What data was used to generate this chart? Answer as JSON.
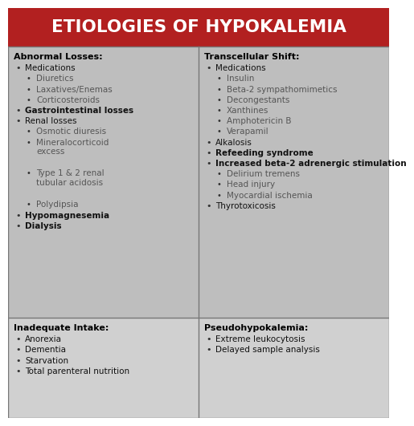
{
  "title": "ETIOLOGIES OF HYPOKALEMIA",
  "title_bg": "#B22020",
  "title_color": "#FFFFFF",
  "top_bg": "#BEBEBE",
  "bot_bg": "#D0D0D0",
  "border_color": "#777777",
  "sections": {
    "top_left": {
      "header": "Abnormal Losses:",
      "lines": [
        {
          "text": "Medications",
          "level": 1,
          "bold": false,
          "gray": false
        },
        {
          "text": "Diuretics",
          "level": 2,
          "bold": false,
          "gray": true
        },
        {
          "text": "Laxatives/Enemas",
          "level": 2,
          "bold": false,
          "gray": true
        },
        {
          "text": "Corticosteroids",
          "level": 2,
          "bold": false,
          "gray": true
        },
        {
          "text": "Gastrointestinal losses",
          "level": 1,
          "bold": true,
          "gray": false
        },
        {
          "text": "Renal losses",
          "level": 1,
          "bold": false,
          "gray": false
        },
        {
          "text": "Osmotic diuresis",
          "level": 2,
          "bold": false,
          "gray": true
        },
        {
          "text": "Mineralocorticoid\nexcess",
          "level": 2,
          "bold": false,
          "gray": true
        },
        {
          "text": "Type 1 & 2 renal\ntubular acidosis",
          "level": 2,
          "bold": false,
          "gray": true
        },
        {
          "text": "Polydipsia",
          "level": 2,
          "bold": false,
          "gray": true
        },
        {
          "text": "Hypomagnesemia",
          "level": 1,
          "bold": true,
          "gray": false
        },
        {
          "text": "Dialysis",
          "level": 1,
          "bold": true,
          "gray": false
        }
      ]
    },
    "top_right": {
      "header": "Transcellular Shift:",
      "lines": [
        {
          "text": "Medications",
          "level": 1,
          "bold": false,
          "gray": false
        },
        {
          "text": "Insulin",
          "level": 2,
          "bold": false,
          "gray": true
        },
        {
          "text": "Beta-2 sympathomimetics",
          "level": 2,
          "bold": false,
          "gray": true
        },
        {
          "text": "Decongestants",
          "level": 2,
          "bold": false,
          "gray": true
        },
        {
          "text": "Xanthines",
          "level": 2,
          "bold": false,
          "gray": true
        },
        {
          "text": "Amphotericin B",
          "level": 2,
          "bold": false,
          "gray": true
        },
        {
          "text": "Verapamil",
          "level": 2,
          "bold": false,
          "gray": true
        },
        {
          "text": "Alkalosis",
          "level": 1,
          "bold": false,
          "gray": false
        },
        {
          "text": "Refeeding syndrome",
          "level": 1,
          "bold": true,
          "gray": false
        },
        {
          "text": "Increased beta-2 adrenergic stimulation",
          "level": 1,
          "bold": true,
          "gray": false
        },
        {
          "text": "Delirium tremens",
          "level": 2,
          "bold": false,
          "gray": true
        },
        {
          "text": "Head injury",
          "level": 2,
          "bold": false,
          "gray": true
        },
        {
          "text": "Myocardial ischemia",
          "level": 2,
          "bold": false,
          "gray": true
        },
        {
          "text": "Thyrotoxicosis",
          "level": 1,
          "bold": false,
          "gray": false
        }
      ]
    },
    "bottom_left": {
      "header": "Inadequate Intake:",
      "lines": [
        {
          "text": "Anorexia",
          "level": 1,
          "bold": false,
          "gray": false
        },
        {
          "text": "Dementia",
          "level": 1,
          "bold": false,
          "gray": false
        },
        {
          "text": "Starvation",
          "level": 1,
          "bold": false,
          "gray": false
        },
        {
          "text": "Total parenteral nutrition",
          "level": 1,
          "bold": false,
          "gray": false
        }
      ]
    },
    "bottom_right": {
      "header": "Pseudohypokalemia:",
      "lines": [
        {
          "text": "Extreme leukocytosis",
          "level": 1,
          "bold": false,
          "gray": false
        },
        {
          "text": "Delayed sample analysis",
          "level": 1,
          "bold": false,
          "gray": false
        }
      ]
    }
  }
}
